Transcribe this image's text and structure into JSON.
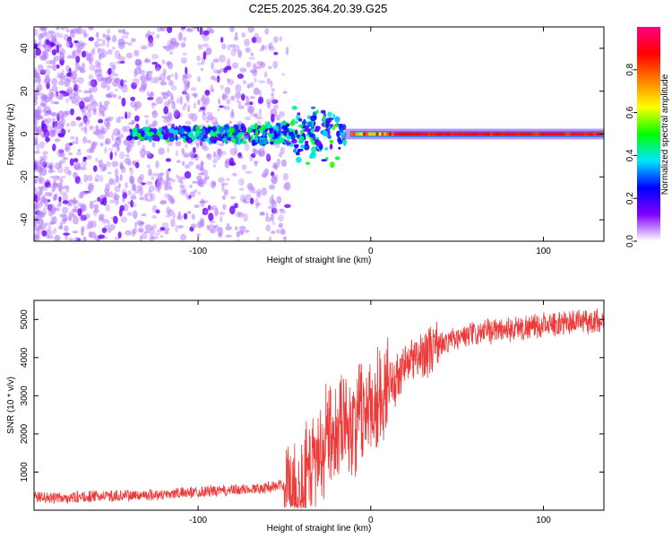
{
  "title": "C2E5.2025.364.20.39.G25",
  "chart_data": [
    {
      "type": "heatmap",
      "xlabel": "Height of straight line (km)",
      "ylabel": "Frequency (Hz)",
      "xlim": [
        -195,
        135
      ],
      "ylim": [
        -50,
        50
      ],
      "xticks": [
        -100,
        0,
        100
      ],
      "xtick_labels": [
        "-100",
        "0",
        "100"
      ],
      "yticks": [
        -40,
        -20,
        0,
        20,
        40
      ],
      "ytick_labels": [
        "-40",
        "-20",
        "0",
        "20",
        "40"
      ],
      "grid": false,
      "colorbar": {
        "label": "Normalized spectral amplitude",
        "range": [
          0,
          1
        ],
        "ticks": [
          0.0,
          0.2,
          0.4,
          0.6,
          0.8
        ],
        "tick_labels": [
          "0.0",
          "0.2",
          "0.4",
          "0.6",
          "0.8"
        ],
        "colormap": [
          "#ffffff",
          "#8000ff",
          "#0000ff",
          "#00e5ff",
          "#00ff00",
          "#ffff00",
          "#ff8000",
          "#ff0000",
          "#ff0080"
        ]
      },
      "features": [
        {
          "name": "noise",
          "x_range": [
            -195,
            -50
          ],
          "y_range": [
            -50,
            50
          ],
          "amplitude": 0.15
        },
        {
          "name": "scattered-signal",
          "x_range": [
            -140,
            -15
          ],
          "y_center": 0,
          "y_spread": 6,
          "amplitude": 0.4
        },
        {
          "name": "carrier-line",
          "x_range": [
            -15,
            135
          ],
          "y_center": 0,
          "amplitude": 0.95
        }
      ]
    },
    {
      "type": "line",
      "xlabel": "Height of straight line (km)",
      "ylabel": "SNR (10 * v/v)",
      "xlim": [
        -195,
        135
      ],
      "ylim": [
        0,
        5500
      ],
      "xticks": [
        -100,
        0,
        100
      ],
      "xtick_labels": [
        "-100",
        "0",
        "100"
      ],
      "yticks": [
        1000,
        2000,
        3000,
        4000,
        5000
      ],
      "ytick_labels": [
        "1000",
        "2000",
        "3000",
        "4000",
        "5000"
      ],
      "grid": false,
      "series": [
        {
          "color": "#ef3a3a",
          "x": [
            -195,
            -180,
            -160,
            -140,
            -120,
            -100,
            -80,
            -70,
            -60,
            -50,
            -40,
            -35,
            -30,
            -25,
            -20,
            -15,
            -10,
            -5,
            0,
            5,
            10,
            15,
            20,
            30,
            40,
            50,
            60,
            70,
            80,
            90,
            100,
            110,
            120,
            135
          ],
          "y": [
            350,
            320,
            360,
            380,
            420,
            480,
            520,
            560,
            600,
            650,
            750,
            1100,
            1600,
            2000,
            2300,
            2400,
            2300,
            2500,
            2700,
            3000,
            3200,
            3500,
            3800,
            4100,
            4350,
            4500,
            4600,
            4700,
            4750,
            4800,
            4850,
            4900,
            4950,
            4950
          ]
        }
      ]
    }
  ]
}
